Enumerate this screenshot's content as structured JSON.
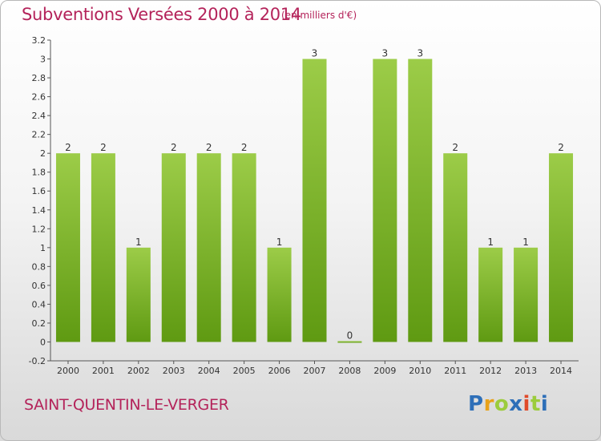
{
  "header": {
    "title": "Subventions Versées 2000 à 2014",
    "subtitle": "(en milliers d'€)"
  },
  "footer": {
    "commune": "SAINT-QUENTIN-LE-VERGER",
    "brand": "Proxiti",
    "brand_colors": [
      "#2e6fb8",
      "#e8a21a",
      "#9ccc3c",
      "#2e6fb8",
      "#e04a2a",
      "#9ccc3c",
      "#2e6fb8"
    ]
  },
  "colors": {
    "text_accent": "#b4235a",
    "bar_top": "#9ccc48",
    "bar_bottom": "#5f9a12"
  },
  "chart_data": {
    "type": "bar",
    "title": "Subventions Versées 2000 à 2014",
    "subtitle": "(en milliers d'€)",
    "xlabel": "",
    "ylabel": "",
    "categories": [
      "2000",
      "2001",
      "2002",
      "2003",
      "2004",
      "2005",
      "2006",
      "2007",
      "2008",
      "2009",
      "2010",
      "2011",
      "2012",
      "2013",
      "2014"
    ],
    "values": [
      2,
      2,
      1,
      2,
      2,
      2,
      1,
      3,
      0,
      3,
      3,
      2,
      1,
      1,
      2
    ],
    "data_labels": [
      "2",
      "2",
      "1",
      "2",
      "2",
      "2",
      "1",
      "3",
      "0",
      "3",
      "3",
      "2",
      "1",
      "1",
      "2"
    ],
    "ylim": [
      -0.2,
      3.2
    ],
    "yticks": [
      "-0.2",
      "0",
      "0.2",
      "0.4",
      "0.6",
      "0.8",
      "1",
      "1.2",
      "1.4",
      "1.6",
      "1.8",
      "2",
      "2.2",
      "2.4",
      "2.6",
      "2.8",
      "3",
      "3.2"
    ],
    "ytick_values": [
      -0.2,
      0,
      0.2,
      0.4,
      0.6,
      0.8,
      1,
      1.2,
      1.4,
      1.6,
      1.8,
      2,
      2.2,
      2.4,
      2.6,
      2.8,
      3,
      3.2
    ],
    "grid": false,
    "legend": "none"
  }
}
